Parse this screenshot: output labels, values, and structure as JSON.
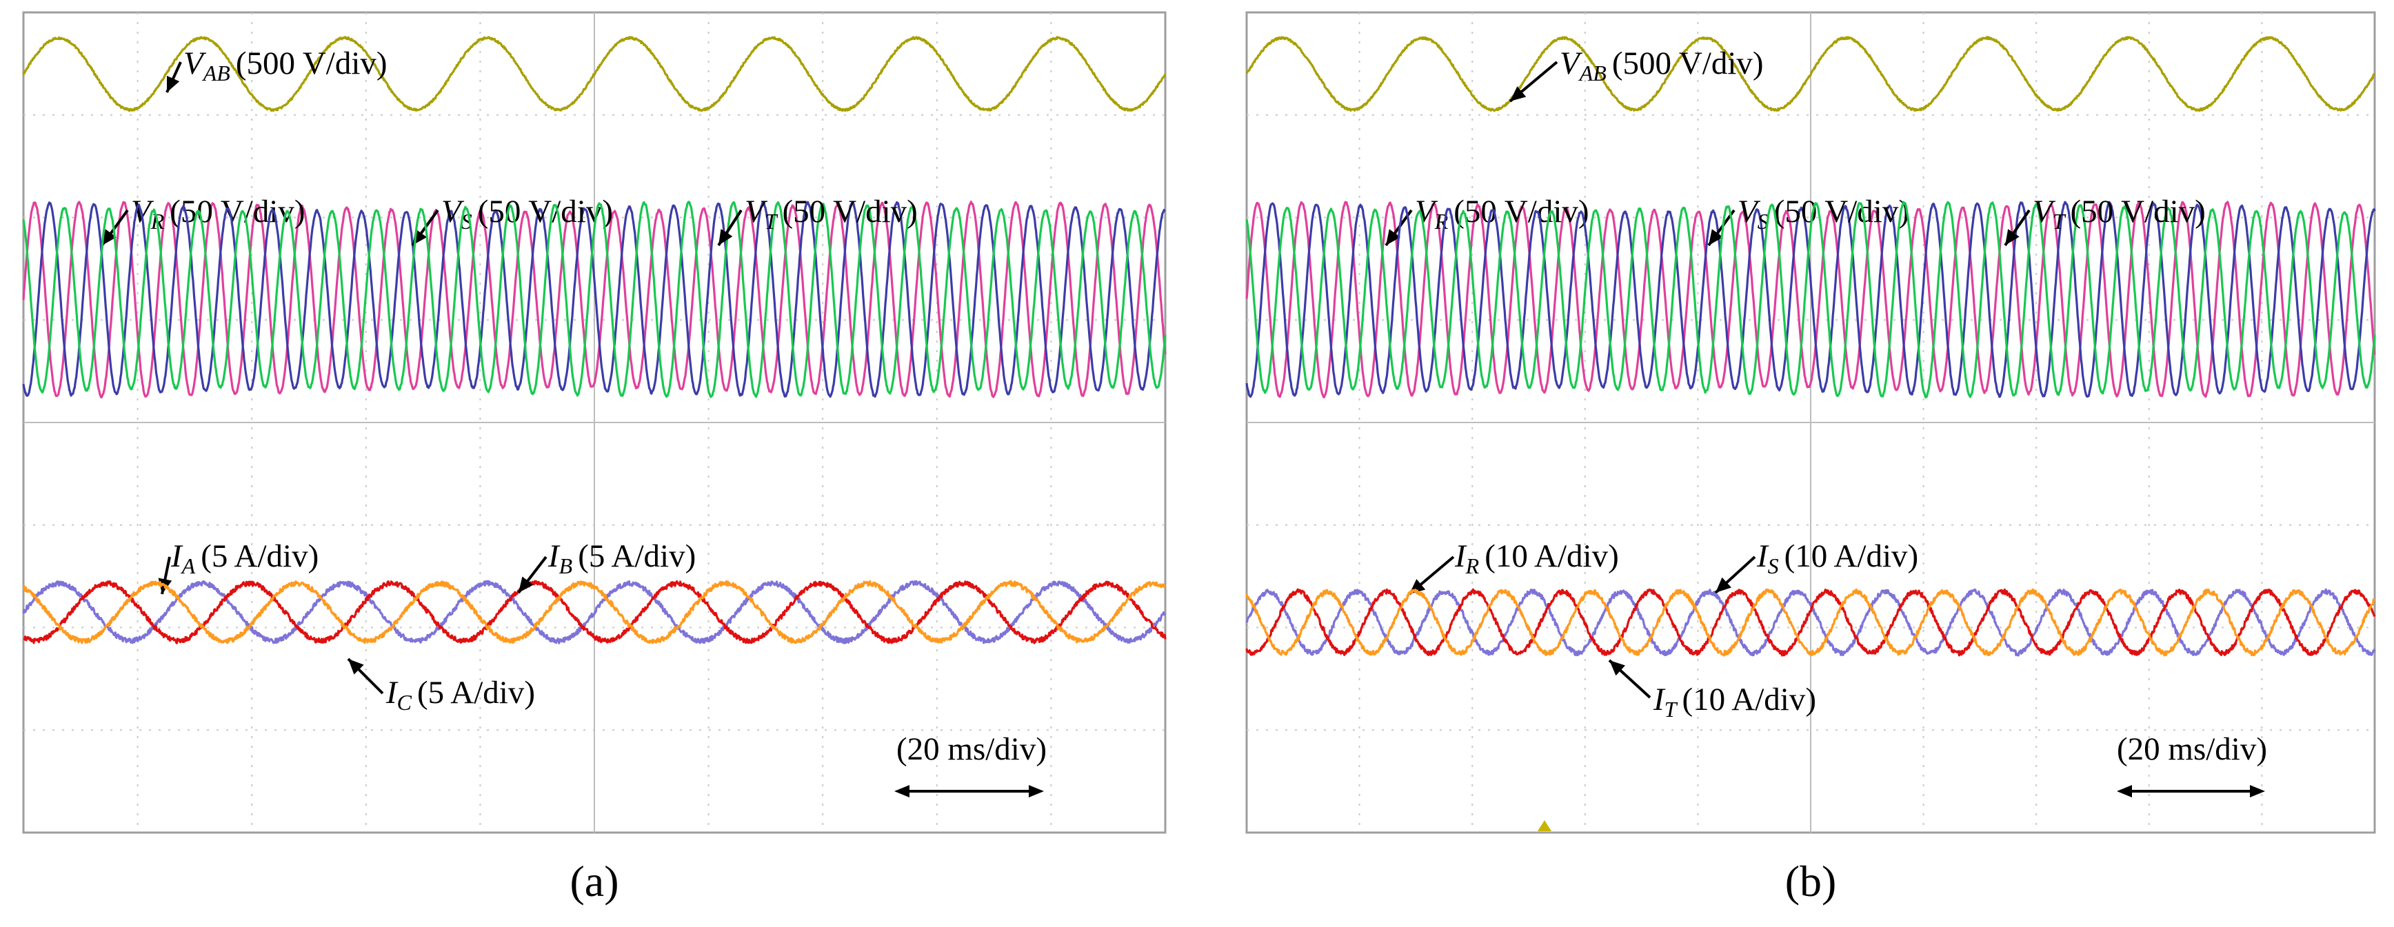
{
  "colors": {
    "vab": "#a8a000",
    "R": "#e0409a",
    "S": "#3c3ca8",
    "T": "#18c850",
    "ia": "#7d73d8",
    "ib": "#e01010",
    "ic": "#ff9a1e",
    "grid": "#c8c8c8",
    "frame": "#9e9e9e",
    "marker": "#c8b400"
  },
  "chart_data": [
    {
      "type": "line",
      "caption": "(a)",
      "time_scale": "(20 ms/div)",
      "x_divisions": 10,
      "y_divisions": 8,
      "cycles_visible": 8,
      "series": [
        {
          "key": "vab",
          "name": "V",
          "sub": "AB",
          "scale": "(500 V/div)",
          "cycles": 8,
          "amplitude_div": 0.35,
          "offset_div": 7.4,
          "phase_deg": 0,
          "color": "vab"
        },
        {
          "key": "R",
          "name": "V",
          "sub": "R",
          "scale": "(50 V/div)",
          "cycles": 25.6,
          "amplitude_div": 0.9,
          "offset_div": 5.2,
          "phase_deg": 0,
          "color": "R"
        },
        {
          "key": "S",
          "name": "V",
          "sub": "S",
          "scale": "(50 V/div)",
          "cycles": 25.6,
          "amplitude_div": 0.9,
          "offset_div": 5.2,
          "phase_deg": 120,
          "color": "S"
        },
        {
          "key": "T",
          "name": "V",
          "sub": "T",
          "scale": "(50 V/div)",
          "cycles": 25.6,
          "amplitude_div": 0.9,
          "offset_div": 5.2,
          "phase_deg": 240,
          "color": "T"
        },
        {
          "key": "ia",
          "name": "I",
          "sub": "A",
          "scale": "(5 A/div)",
          "cycles": 8,
          "amplitude_div": 0.28,
          "offset_div": 2.15,
          "phase_deg": 0,
          "color": "ia"
        },
        {
          "key": "ib",
          "name": "I",
          "sub": "B",
          "scale": "(5 A/div)",
          "cycles": 8,
          "amplitude_div": 0.28,
          "offset_div": 2.15,
          "phase_deg": 120,
          "color": "ib"
        },
        {
          "key": "ic",
          "name": "I",
          "sub": "C",
          "scale": "(5 A/div)",
          "cycles": 8,
          "amplitude_div": 0.28,
          "offset_div": 2.15,
          "phase_deg": 240,
          "color": "ic"
        }
      ]
    },
    {
      "type": "line",
      "caption": "(b)",
      "time_scale": "(20 ms/div)",
      "x_divisions": 10,
      "y_divisions": 8,
      "cycles_visible": 8,
      "series": [
        {
          "key": "vab",
          "name": "V",
          "sub": "AB",
          "scale": "(500 V/div)",
          "cycles": 8,
          "amplitude_div": 0.35,
          "offset_div": 7.4,
          "phase_deg": 0,
          "color": "vab"
        },
        {
          "key": "R",
          "name": "V",
          "sub": "R",
          "scale": "(50 V/div)",
          "cycles": 25.6,
          "amplitude_div": 0.9,
          "offset_div": 5.2,
          "phase_deg": 0,
          "color": "R"
        },
        {
          "key": "S",
          "name": "V",
          "sub": "S",
          "scale": "(50 V/div)",
          "cycles": 25.6,
          "amplitude_div": 0.9,
          "offset_div": 5.2,
          "phase_deg": 120,
          "color": "S"
        },
        {
          "key": "T",
          "name": "V",
          "sub": "T",
          "scale": "(50 V/div)",
          "cycles": 25.6,
          "amplitude_div": 0.9,
          "offset_div": 5.2,
          "phase_deg": 240,
          "color": "T"
        },
        {
          "key": "ir",
          "name": "I",
          "sub": "R",
          "scale": "(10 A/div)",
          "cycles": 12.8,
          "amplitude_div": 0.3,
          "offset_div": 2.05,
          "phase_deg": 0,
          "color": "ia"
        },
        {
          "key": "is",
          "name": "I",
          "sub": "S",
          "scale": "(10 A/div)",
          "cycles": 12.8,
          "amplitude_div": 0.3,
          "offset_div": 2.05,
          "phase_deg": 120,
          "color": "ib"
        },
        {
          "key": "it",
          "name": "I",
          "sub": "T",
          "scale": "(10 A/div)",
          "cycles": 12.8,
          "amplitude_div": 0.3,
          "offset_div": 2.05,
          "phase_deg": 240,
          "color": "ic"
        }
      ]
    }
  ]
}
